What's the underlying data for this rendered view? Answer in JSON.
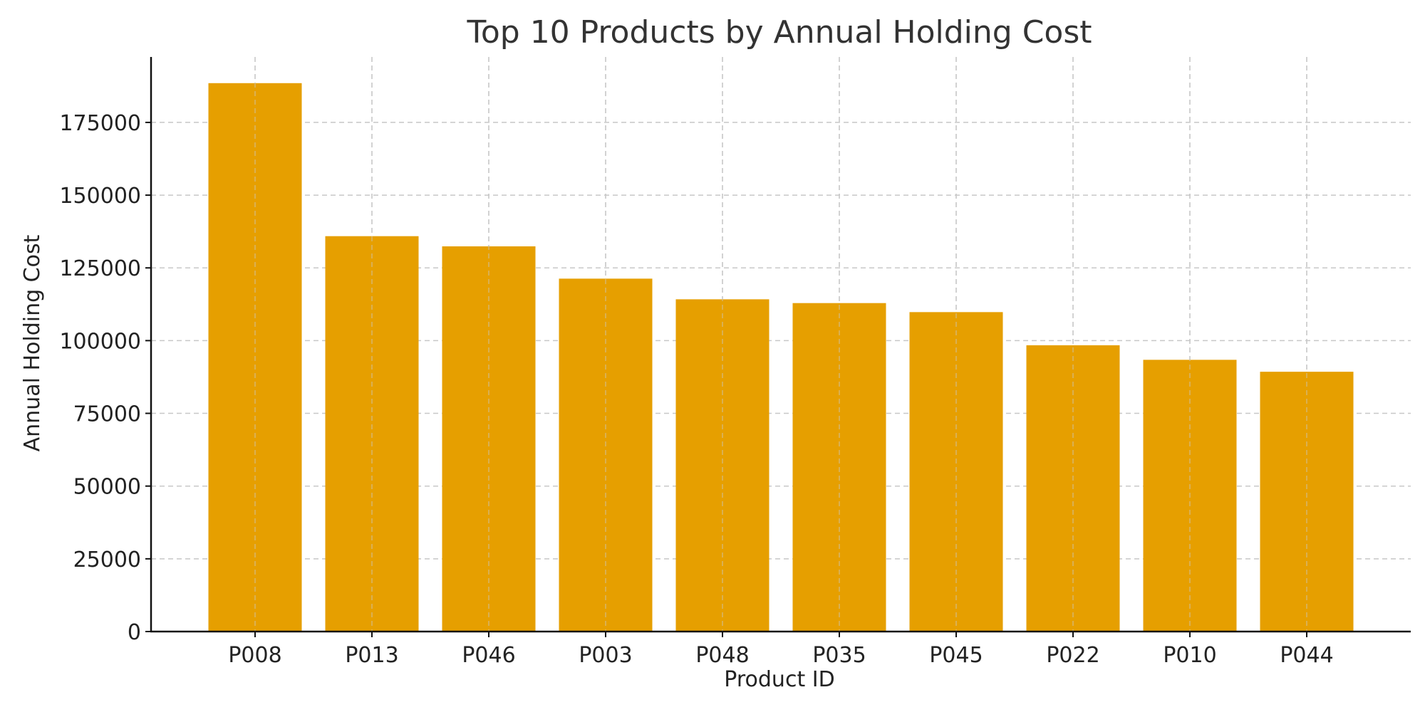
{
  "chart_data": {
    "type": "bar",
    "title": "Top 10 Products by Annual Holding Cost",
    "xlabel": "Product ID",
    "ylabel": "Annual Holding Cost",
    "categories": [
      "P008",
      "P013",
      "P046",
      "P003",
      "P048",
      "P035",
      "P045",
      "P022",
      "P010",
      "P044"
    ],
    "values": [
      188500,
      135900,
      132400,
      121300,
      114200,
      112900,
      109800,
      98400,
      93400,
      89300
    ],
    "yticks": [
      0,
      25000,
      50000,
      75000,
      100000,
      125000,
      150000,
      175000
    ],
    "ylim": [
      0,
      197500
    ],
    "grid": true,
    "legend": "none",
    "bar_color": "#E69F00"
  }
}
